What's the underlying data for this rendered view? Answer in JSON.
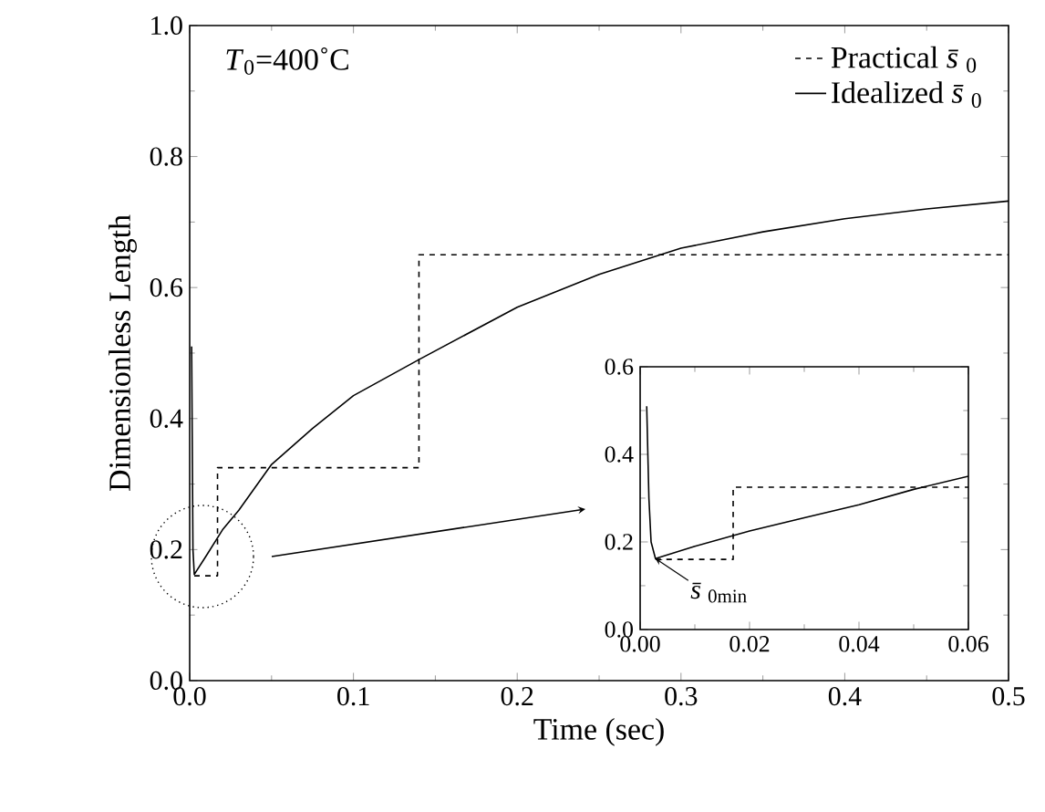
{
  "chart_data": [
    {
      "type": "line",
      "xlabel": "Time (sec)",
      "ylabel": "Dimensionless Length",
      "xlim": [
        0,
        0.5
      ],
      "ylim": [
        0,
        1
      ],
      "xticks": [
        {
          "value": 0,
          "label": "0.0"
        },
        {
          "value": 0.1,
          "label": "0.1"
        },
        {
          "value": 0.2,
          "label": "0.2"
        },
        {
          "value": 0.3,
          "label": "0.3"
        },
        {
          "value": 0.4,
          "label": "0.4"
        },
        {
          "value": 0.5,
          "label": "0.5"
        }
      ],
      "yticks": [
        {
          "value": 0,
          "label": "0.0"
        },
        {
          "value": 0.2,
          "label": "0.2"
        },
        {
          "value": 0.4,
          "label": "0.4"
        },
        {
          "value": 0.6,
          "label": "0.6"
        },
        {
          "value": 0.8,
          "label": "0.8"
        },
        {
          "value": 1,
          "label": "1.0"
        }
      ],
      "legend": "top right",
      "annotations": [
        "*T*$_{0}$=400˚C"
      ],
      "series": [
        {
          "name": "Practical *s̄*$_{0}$",
          "type": "step",
          "color": "#000000",
          "line_style": "dashed",
          "x": [
            0.0028,
            0.017,
            0.14,
            0.5
          ],
          "values": [
            0.16,
            0.325,
            0.65,
            0.65
          ]
        },
        {
          "name": "Idealized *s̄*$_{0}$",
          "type": "line",
          "color": "#000000",
          "line_style": "solid",
          "x": [
            0.0012,
            0.002,
            0.0028,
            0.01,
            0.02,
            0.03,
            0.05,
            0.075,
            0.1,
            0.14,
            0.2,
            0.25,
            0.3,
            0.35,
            0.4,
            0.45,
            0.5
          ],
          "values": [
            0.51,
            0.2,
            0.162,
            0.19,
            0.23,
            0.26,
            0.33,
            0.385,
            0.435,
            0.49,
            0.57,
            0.62,
            0.66,
            0.685,
            0.705,
            0.72,
            0.732
          ]
        }
      ]
    },
    {
      "type": "line",
      "xlim": [
        0,
        0.06
      ],
      "ylim": [
        0,
        0.6
      ],
      "xticks": [
        {
          "value": 0,
          "label": "0.00"
        },
        {
          "value": 0.02,
          "label": "0.02"
        },
        {
          "value": 0.04,
          "label": "0.04"
        },
        {
          "value": 0.06,
          "label": "0.06"
        }
      ],
      "yticks": [
        {
          "value": 0,
          "label": "0.0"
        },
        {
          "value": 0.2,
          "label": "0.2"
        },
        {
          "value": 0.4,
          "label": "0.4"
        },
        {
          "value": 0.6,
          "label": "0.6"
        }
      ],
      "annotations": [
        {
          "text": "*s̄*$_{0min}$",
          "x": 0.0028,
          "y": 0.162
        }
      ],
      "series": [
        {
          "type": "step",
          "color": "#000000",
          "line_style": "dashed",
          "x": [
            0.0028,
            0.017,
            0.06
          ],
          "values": [
            0.16,
            0.325,
            0.325
          ]
        },
        {
          "type": "line",
          "color": "#000000",
          "line_style": "solid",
          "x": [
            0.0012,
            0.0016,
            0.002,
            0.0028,
            0.01,
            0.02,
            0.03,
            0.04,
            0.05,
            0.06
          ],
          "values": [
            0.51,
            0.3,
            0.2,
            0.162,
            0.19,
            0.225,
            0.255,
            0.285,
            0.32,
            0.35
          ]
        }
      ]
    }
  ]
}
